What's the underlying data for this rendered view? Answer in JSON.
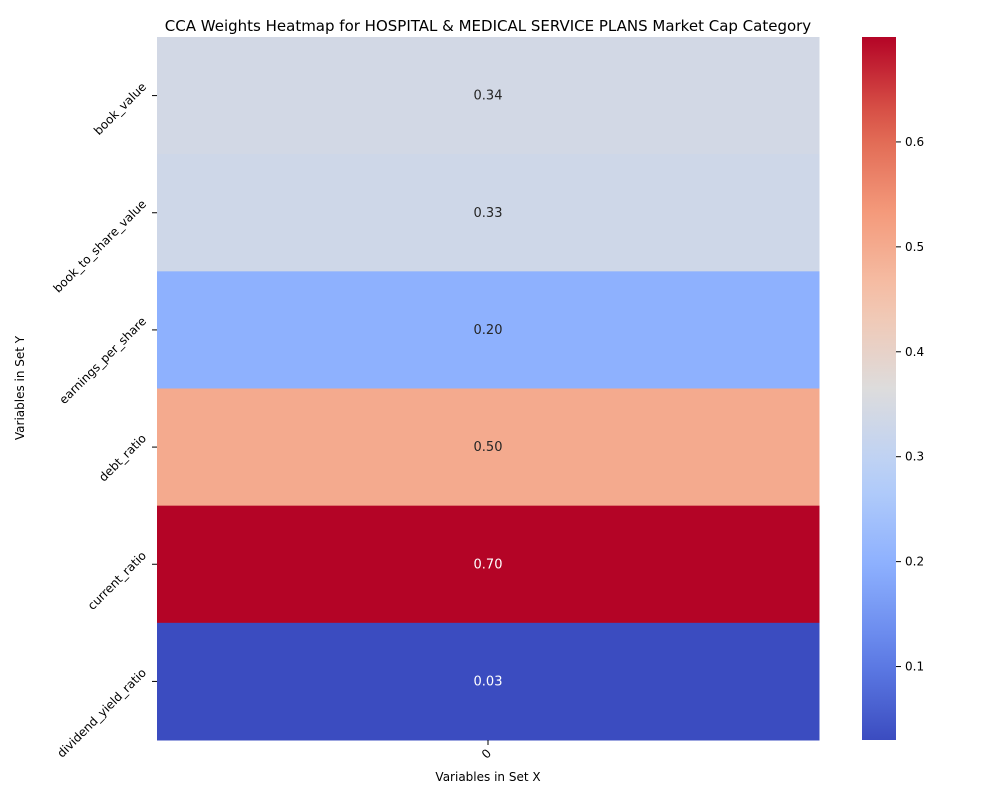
{
  "chart_data": {
    "type": "heatmap",
    "title": "CCA Weights Heatmap for HOSPITAL & MEDICAL SERVICE PLANS Market Cap Category",
    "xlabel": "Variables in Set X",
    "ylabel": "Variables in Set Y",
    "x_categories": [
      "0"
    ],
    "y_categories": [
      "book_value",
      "book_to_share_value",
      "earnings_per_share",
      "debt_ratio",
      "current_ratio",
      "dividend_yield_ratio"
    ],
    "values": [
      [
        0.34
      ],
      [
        0.33
      ],
      [
        0.2
      ],
      [
        0.5
      ],
      [
        0.7
      ],
      [
        0.03
      ]
    ],
    "value_labels": [
      "0.34",
      "0.33",
      "0.20",
      "0.50",
      "0.70",
      "0.03"
    ],
    "colormap": "coolwarm",
    "color_range": [
      0.03,
      0.7
    ],
    "colorbar_ticks": [
      "0.1",
      "0.2",
      "0.3",
      "0.4",
      "0.5",
      "0.6"
    ],
    "colorbar_tick_values": [
      0.1,
      0.2,
      0.3,
      0.4,
      0.5,
      0.6
    ]
  }
}
